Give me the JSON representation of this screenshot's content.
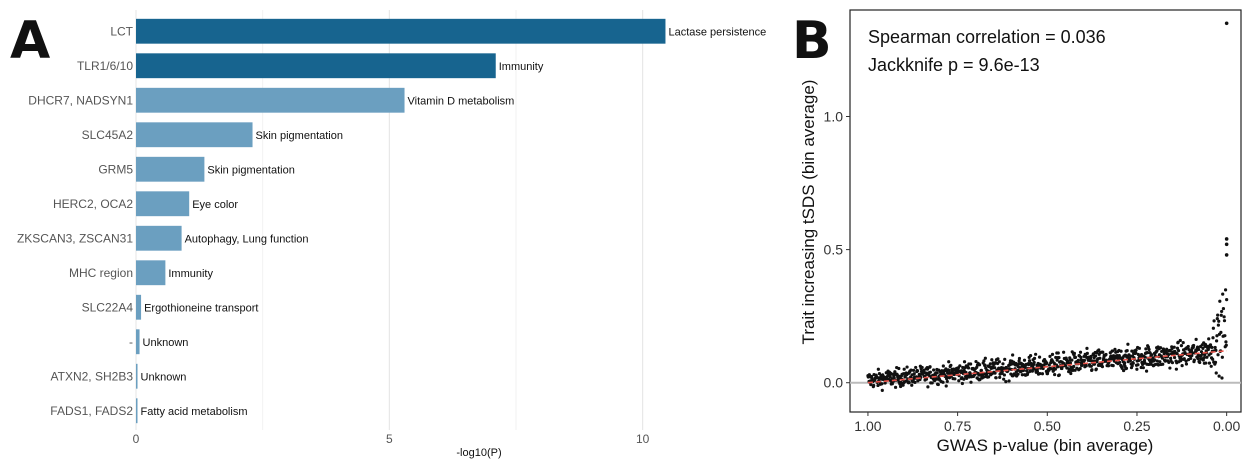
{
  "panel_a": {
    "letter": "A",
    "chart_data": {
      "type": "bar",
      "orientation": "horizontal",
      "categories": [
        "LCT",
        "TLR1/6/10",
        "DHCR7, NADSYN1",
        "SLC45A2",
        "GRM5",
        "HERC2, OCA2",
        "ZKSCAN3, ZSCAN31",
        "MHC region",
        "SLC22A4",
        "-",
        "ATXN2, SH2B3",
        "FADS1, FADS2"
      ],
      "values": [
        10.45,
        7.1,
        5.3,
        2.3,
        1.35,
        1.05,
        0.9,
        0.58,
        0.1,
        0.07,
        0.03,
        0.02
      ],
      "annotations": [
        "Lactase persistence",
        "Immunity",
        "Vitamin D metabolism",
        "Skin pigmentation",
        "Skin pigmentation",
        "Eye color",
        "Autophagy, Lung function",
        "Immunity",
        "Ergothioneine transport",
        "Unknown",
        "Unknown",
        "Fatty acid metabolism"
      ],
      "bar_colors": [
        "#17648f",
        "#17648f",
        "#6b9fc0",
        "#6b9fc0",
        "#6b9fc0",
        "#6b9fc0",
        "#6b9fc0",
        "#6b9fc0",
        "#6b9fc0",
        "#6b9fc0",
        "#6b9fc0",
        "#6b9fc0"
      ],
      "xlabel": "-log10(P)",
      "xlim": [
        0,
        10.5
      ],
      "xticks": [
        0,
        5,
        10
      ],
      "grid": true
    }
  },
  "panel_b": {
    "letter": "B",
    "chart_data": {
      "type": "scatter",
      "xlabel": "GWAS p-value (bin average)",
      "ylabel": "Trait increasing tSDS (bin average)",
      "xlim": [
        1.05,
        -0.04
      ],
      "ylim": [
        -0.11,
        1.4
      ],
      "x_reversed": true,
      "xticks": [
        "1.00",
        "0.75",
        "0.50",
        "0.25",
        "0.00"
      ],
      "xtick_values": [
        1.0,
        0.75,
        0.5,
        0.25,
        0.0
      ],
      "yticks": [
        "0.0",
        "0.5",
        "1.0"
      ],
      "ytick_values": [
        0.0,
        0.5,
        1.0
      ],
      "annotations": [
        "Spearman correlation = 0.036",
        "Jackknife p = 9.6e-13"
      ],
      "trend": {
        "x": [
          1.0,
          0.0
        ],
        "y": [
          0.0,
          0.12
        ],
        "color": "#e8534a"
      },
      "reference_line": {
        "y": 0.0,
        "color": "#bbbbbb"
      },
      "outliers": {
        "x": [
          0.0,
          0.0,
          0.0,
          0.0
        ],
        "y": [
          1.35,
          0.54,
          0.52,
          0.48
        ]
      },
      "n_bins": 1000,
      "point_color": "#111111",
      "grid": false
    }
  }
}
